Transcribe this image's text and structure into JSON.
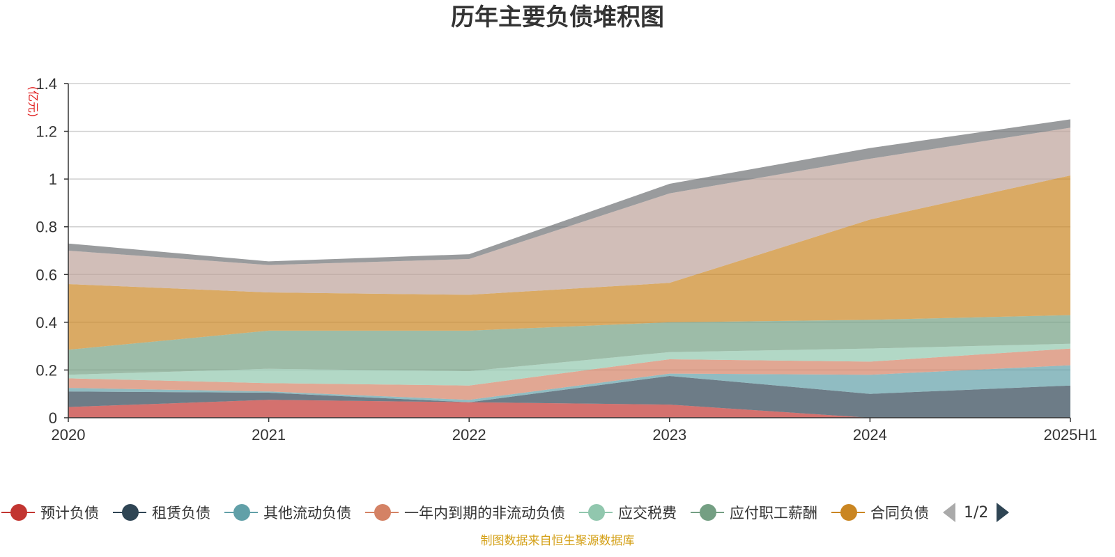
{
  "chart_data": {
    "type": "area",
    "stacked": true,
    "title": "历年主要负债堆积图",
    "unit": "(亿元)",
    "categories": [
      "2020",
      "2021",
      "2022",
      "2023",
      "2024",
      "2025H1"
    ],
    "y_ticks": [
      "0",
      "0.2",
      "0.4",
      "0.6",
      "0.8",
      "1",
      "1.2",
      "1.4"
    ],
    "ylim": [
      0,
      1.4
    ],
    "grid": true,
    "series": [
      {
        "name": "预计负债",
        "color": "#c23531",
        "values": [
          0.045,
          0.075,
          0.065,
          0.055,
          0.0,
          0.0
        ]
      },
      {
        "name": "租赁负债",
        "color": "#2f4554",
        "values": [
          0.065,
          0.03,
          0.0,
          0.12,
          0.1,
          0.135
        ]
      },
      {
        "name": "其他流动负债",
        "color": "#61a0a8",
        "values": [
          0.015,
          0.005,
          0.01,
          0.01,
          0.08,
          0.085
        ]
      },
      {
        "name": "一年内到期的非流动负债",
        "color": "#d48265",
        "values": [
          0.04,
          0.035,
          0.06,
          0.06,
          0.055,
          0.07
        ]
      },
      {
        "name": "应交税费",
        "color": "#91c7ae",
        "values": [
          0.015,
          0.06,
          0.06,
          0.03,
          0.055,
          0.02
        ]
      },
      {
        "name": "应付职工薪酬",
        "color": "#749f83",
        "values": [
          0.105,
          0.16,
          0.17,
          0.125,
          0.12,
          0.12
        ]
      },
      {
        "name": "合同负债",
        "color": "#ca8622",
        "values": [
          0.275,
          0.16,
          0.15,
          0.165,
          0.42,
          0.585
        ]
      },
      {
        "name": "",
        "color": "#bda29a",
        "values": [
          0.14,
          0.115,
          0.15,
          0.375,
          0.255,
          0.2
        ]
      },
      {
        "name": "",
        "color": "#6e7074",
        "values": [
          0.03,
          0.015,
          0.02,
          0.04,
          0.045,
          0.035
        ]
      }
    ]
  },
  "legend": {
    "page_indicator": "1/2"
  },
  "footer": "制图数据来自恒生聚源数据库"
}
